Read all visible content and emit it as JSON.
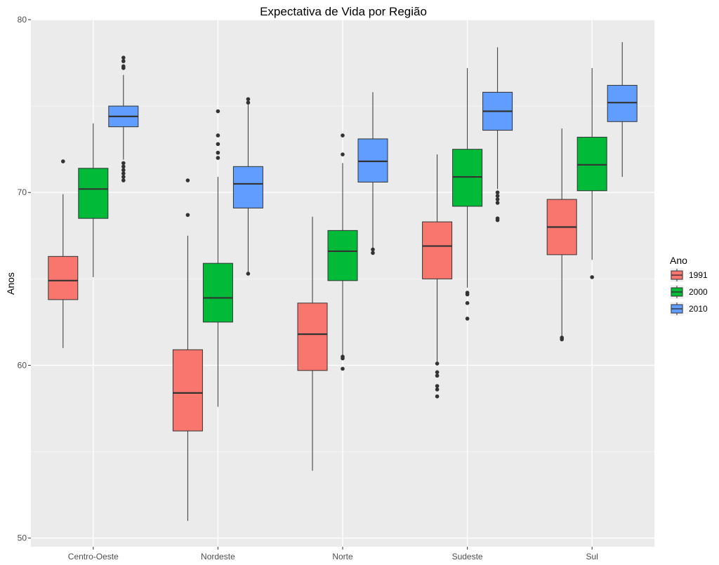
{
  "chart_data": {
    "type": "boxplot",
    "title": "Expectativa de Vida por Região",
    "xlabel": "",
    "ylabel": "Anos",
    "ylim": [
      49.5,
      80
    ],
    "yticks": [
      50,
      60,
      70,
      80
    ],
    "grid": true,
    "legend": {
      "title": "Ano",
      "position": "right"
    },
    "categories": [
      "Centro-Oeste",
      "Nordeste",
      "Norte",
      "Sudeste",
      "Sul"
    ],
    "series": [
      {
        "name": "1991",
        "color": "#F8766D",
        "boxes": [
          {
            "min": 61.0,
            "q1": 63.8,
            "median": 64.9,
            "q3": 66.3,
            "max": 69.9,
            "outliers": [
              71.8
            ]
          },
          {
            "min": 51.0,
            "q1": 56.2,
            "median": 58.4,
            "q3": 60.9,
            "max": 67.5,
            "outliers": [
              68.7,
              70.7
            ]
          },
          {
            "min": 53.9,
            "q1": 59.7,
            "median": 61.8,
            "q3": 63.6,
            "max": 68.6,
            "outliers": []
          },
          {
            "min": 60.2,
            "q1": 65.0,
            "median": 66.9,
            "q3": 68.3,
            "max": 72.2,
            "outliers": [
              60.1,
              59.6,
              59.4,
              58.8,
              58.6,
              58.2
            ]
          },
          {
            "min": 61.7,
            "q1": 66.4,
            "median": 68.0,
            "q3": 69.6,
            "max": 73.7,
            "outliers": [
              61.5,
              61.6
            ]
          }
        ]
      },
      {
        "name": "2000",
        "color": "#00BA38",
        "boxes": [
          {
            "min": 65.1,
            "q1": 68.5,
            "median": 70.2,
            "q3": 71.4,
            "max": 74.0,
            "outliers": []
          },
          {
            "min": 57.6,
            "q1": 62.5,
            "median": 63.9,
            "q3": 65.9,
            "max": 70.9,
            "outliers": [
              72.0,
              72.3,
              72.8,
              73.3,
              74.7
            ]
          },
          {
            "min": 60.6,
            "q1": 64.9,
            "median": 66.6,
            "q3": 67.8,
            "max": 71.7,
            "outliers": [
              60.4,
              60.5,
              59.8,
              72.2,
              73.3
            ]
          },
          {
            "min": 64.5,
            "q1": 69.2,
            "median": 70.9,
            "q3": 72.5,
            "max": 77.2,
            "outliers": [
              64.2,
              64.1,
              63.6,
              62.7
            ]
          },
          {
            "min": 66.1,
            "q1": 70.1,
            "median": 71.6,
            "q3": 73.2,
            "max": 77.2,
            "outliers": [
              65.1
            ]
          }
        ]
      },
      {
        "name": "2010",
        "color": "#619CFF",
        "boxes": [
          {
            "min": 71.9,
            "q1": 73.8,
            "median": 74.4,
            "q3": 75.0,
            "max": 76.8,
            "outliers": [
              71.7,
              71.5,
              71.3,
              71.1,
              70.9,
              70.7,
              77.2,
              77.3,
              77.6,
              77.8
            ]
          },
          {
            "min": 65.4,
            "q1": 69.1,
            "median": 70.5,
            "q3": 71.5,
            "max": 75.1,
            "outliers": [
              65.3,
              75.2,
              75.4
            ]
          },
          {
            "min": 66.8,
            "q1": 70.6,
            "median": 71.8,
            "q3": 73.1,
            "max": 75.8,
            "outliers": [
              66.5,
              66.7
            ]
          },
          {
            "min": 70.2,
            "q1": 73.6,
            "median": 74.7,
            "q3": 75.8,
            "max": 78.4,
            "outliers": [
              69.4,
              69.6,
              69.8,
              70.0,
              68.4,
              68.5
            ]
          },
          {
            "min": 70.9,
            "q1": 74.1,
            "median": 75.2,
            "q3": 76.2,
            "max": 78.7,
            "outliers": []
          }
        ]
      }
    ]
  }
}
